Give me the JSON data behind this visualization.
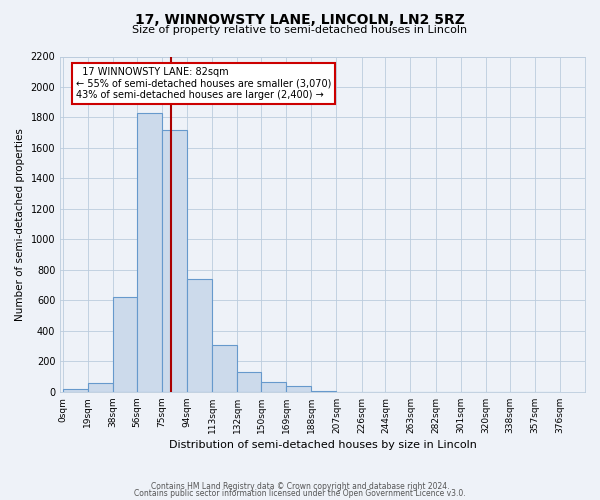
{
  "title": "17, WINNOWSTY LANE, LINCOLN, LN2 5RZ",
  "subtitle": "Size of property relative to semi-detached houses in Lincoln",
  "xlabel": "Distribution of semi-detached houses by size in Lincoln",
  "ylabel": "Number of semi-detached properties",
  "bin_labels": [
    "0sqm",
    "19sqm",
    "38sqm",
    "56sqm",
    "75sqm",
    "94sqm",
    "113sqm",
    "132sqm",
    "150sqm",
    "169sqm",
    "188sqm",
    "207sqm",
    "226sqm",
    "244sqm",
    "263sqm",
    "282sqm",
    "301sqm",
    "320sqm",
    "338sqm",
    "357sqm",
    "376sqm"
  ],
  "bin_edges": [
    0,
    19,
    38,
    56,
    75,
    94,
    113,
    132,
    150,
    169,
    188,
    207,
    226,
    244,
    263,
    282,
    301,
    320,
    338,
    357,
    376
  ],
  "bin_heights": [
    20,
    60,
    625,
    1830,
    1720,
    740,
    305,
    130,
    65,
    40,
    5,
    0,
    0,
    0,
    0,
    0,
    0,
    0,
    0,
    0
  ],
  "bar_color": "#ccdaeb",
  "bar_edge_color": "#6699cc",
  "grid_color": "#bbccdd",
  "property_line_x": 82,
  "ylim": [
    0,
    2200
  ],
  "yticks": [
    0,
    200,
    400,
    600,
    800,
    1000,
    1200,
    1400,
    1600,
    1800,
    2000,
    2200
  ],
  "annotation_title": "17 WINNOWSTY LANE: 82sqm",
  "annotation_line1": "← 55% of semi-detached houses are smaller (3,070)",
  "annotation_line2": "43% of semi-detached houses are larger (2,400) →",
  "annotation_box_color": "#ffffff",
  "annotation_box_edge": "#cc0000",
  "footer1": "Contains HM Land Registry data © Crown copyright and database right 2024.",
  "footer2": "Contains public sector information licensed under the Open Government Licence v3.0.",
  "property_line_color": "#aa0000",
  "background_color": "#eef2f8"
}
